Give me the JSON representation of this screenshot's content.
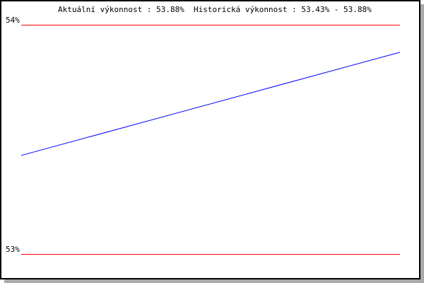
{
  "chart_data": {
    "type": "line",
    "title": "Aktuální výkonnost : 53.88%  Historická výkonnost : 53.43% - 53.88%",
    "ylim": [
      53,
      54
    ],
    "y_ticks": [
      {
        "value": 53,
        "label": "53%"
      },
      {
        "value": 54,
        "label": "54%"
      }
    ],
    "grid": true,
    "series": [
      {
        "values": [
          53.43,
          53.88
        ]
      }
    ],
    "colors": {
      "line": "#0000ff",
      "grid": "#ff0000"
    }
  }
}
